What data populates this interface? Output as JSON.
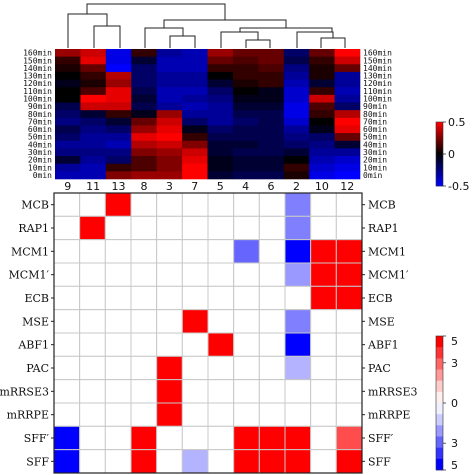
{
  "chart_data": [
    {
      "type": "heatmap",
      "title": "",
      "columns": [
        "9",
        "11",
        "13",
        "8",
        "3",
        "7",
        "5",
        "4",
        "6",
        "2",
        "10",
        "12"
      ],
      "rows": [
        "160min",
        "150min",
        "140min",
        "130min",
        "120min",
        "110min",
        "100min",
        "90min",
        "80min",
        "70min",
        "60min",
        "50min",
        "40min",
        "30min",
        "20min",
        "10min",
        "0min"
      ],
      "colorbar": {
        "min": -0.5,
        "max": 0.5,
        "ticks": [
          "0.5",
          "0",
          "-0.5"
        ],
        "colors": {
          "low": "#0000ff",
          "mid": "#000000",
          "high": "#ff0000"
        }
      },
      "values": [
        [
          0.3,
          0.4,
          -0.45,
          0.1,
          -0.3,
          -0.35,
          0.3,
          0.2,
          0.2,
          -0.2,
          0.2,
          0.5
        ],
        [
          0.1,
          0.45,
          -0.45,
          -0.1,
          -0.35,
          -0.35,
          0.2,
          0.15,
          0.2,
          -0.15,
          0.1,
          0.4
        ],
        [
          0.05,
          0.2,
          -0.5,
          -0.2,
          -0.35,
          -0.35,
          0.1,
          0.1,
          0.15,
          -0.25,
          0.05,
          0.2
        ],
        [
          0.0,
          0.1,
          0.35,
          -0.2,
          -0.3,
          -0.3,
          0.0,
          0.1,
          0.1,
          -0.3,
          0.05,
          -0.3
        ],
        [
          -0.05,
          0.05,
          0.3,
          -0.2,
          -0.3,
          -0.3,
          -0.1,
          0.05,
          0.1,
          -0.35,
          -0.1,
          -0.3
        ],
        [
          0.0,
          0.15,
          0.45,
          -0.15,
          -0.35,
          -0.35,
          -0.2,
          0.0,
          -0.05,
          -0.4,
          0.1,
          -0.35
        ],
        [
          0.0,
          0.5,
          0.45,
          -0.1,
          -0.35,
          -0.3,
          -0.25,
          -0.05,
          -0.05,
          -0.4,
          0.4,
          -0.3
        ],
        [
          -0.15,
          0.4,
          0.4,
          -0.15,
          -0.3,
          -0.35,
          -0.3,
          -0.1,
          -0.1,
          -0.45,
          0.15,
          -0.2
        ],
        [
          -0.2,
          -0.1,
          0.1,
          -0.05,
          0.3,
          -0.3,
          -0.3,
          -0.15,
          -0.15,
          -0.45,
          0.1,
          0.35
        ],
        [
          -0.25,
          -0.2,
          -0.1,
          0.2,
          0.4,
          -0.2,
          -0.3,
          -0.2,
          -0.15,
          -0.4,
          0.0,
          0.5
        ],
        [
          -0.15,
          -0.25,
          -0.2,
          0.3,
          0.45,
          -0.05,
          -0.2,
          -0.15,
          -0.15,
          -0.3,
          -0.05,
          0.45
        ],
        [
          -0.2,
          -0.3,
          -0.3,
          0.45,
          0.5,
          0.1,
          -0.15,
          -0.15,
          -0.15,
          -0.25,
          -0.2,
          0.2
        ],
        [
          -0.3,
          -0.3,
          -0.35,
          0.35,
          0.4,
          0.25,
          -0.1,
          -0.1,
          -0.15,
          -0.2,
          -0.25,
          -0.1
        ],
        [
          -0.25,
          -0.25,
          -0.25,
          0.25,
          0.3,
          0.4,
          -0.1,
          -0.15,
          -0.15,
          -0.1,
          -0.3,
          -0.3
        ],
        [
          -0.1,
          -0.3,
          -0.2,
          0.15,
          0.25,
          0.45,
          -0.05,
          -0.1,
          -0.1,
          0.0,
          -0.35,
          -0.4
        ],
        [
          -0.3,
          -0.35,
          0.1,
          0.15,
          0.25,
          0.5,
          -0.05,
          -0.1,
          -0.1,
          0.1,
          -0.4,
          -0.45
        ],
        [
          -0.35,
          -0.35,
          0.25,
          0.3,
          0.3,
          0.5,
          -0.1,
          -0.15,
          -0.15,
          0.05,
          -0.45,
          -0.5
        ]
      ]
    },
    {
      "type": "heatmap",
      "title": "",
      "columns": [
        "9",
        "11",
        "13",
        "8",
        "3",
        "7",
        "5",
        "4",
        "6",
        "2",
        "10",
        "12"
      ],
      "rows": [
        "MCB",
        "RAP1",
        "MCM1",
        "MCM1′",
        "ECB",
        "MSE",
        "ABF1",
        "PAC",
        "mRRSE3",
        "mRRPE",
        "SFF′",
        "SFF"
      ],
      "colorbar": {
        "min": -5,
        "max": 5,
        "ticks": [
          "5",
          "3",
          "0",
          "3",
          "5"
        ],
        "colors": {
          "low": "#0000ff",
          "mid": "#ffffff",
          "high": "#ff0000"
        }
      },
      "values": [
        [
          0,
          0,
          5,
          0,
          0,
          0,
          0,
          0,
          0,
          -2.5,
          0,
          0
        ],
        [
          0,
          5,
          0,
          0,
          0,
          0,
          0,
          0,
          0,
          -2.5,
          0,
          0
        ],
        [
          0,
          0,
          0,
          0,
          0,
          0,
          0,
          -3,
          0,
          -5,
          5,
          5
        ],
        [
          0,
          0,
          0,
          0,
          0,
          0,
          0,
          0,
          0,
          -2,
          5,
          5
        ],
        [
          0,
          0,
          0,
          0,
          0,
          0,
          0,
          0,
          0,
          0,
          5,
          5
        ],
        [
          0,
          0,
          0,
          0,
          0,
          5,
          0,
          0,
          0,
          -2.5,
          0,
          0
        ],
        [
          0,
          0,
          0,
          0,
          0,
          0,
          5,
          0,
          0,
          -5,
          0,
          0
        ],
        [
          0,
          0,
          0,
          0,
          5,
          0,
          0,
          0,
          0,
          -1.5,
          0,
          0
        ],
        [
          0,
          0,
          0,
          0,
          5,
          0,
          0,
          0,
          0,
          0,
          0,
          0
        ],
        [
          0,
          0,
          0,
          0,
          5,
          0,
          0,
          0,
          0,
          0,
          0,
          0
        ],
        [
          -5,
          0,
          0,
          5,
          0,
          0,
          0,
          5,
          5,
          5,
          0,
          3.5
        ],
        [
          -5,
          0,
          0,
          5,
          0,
          -1.5,
          0,
          5,
          5,
          5,
          0,
          5
        ]
      ]
    }
  ]
}
